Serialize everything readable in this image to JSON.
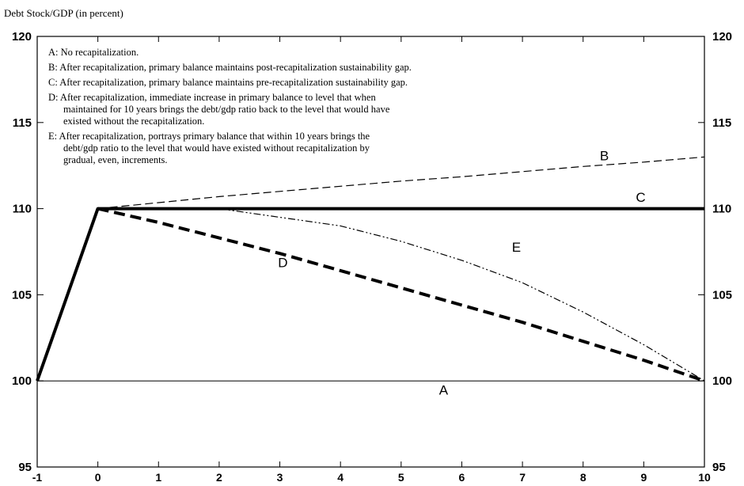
{
  "chart_data": {
    "type": "line",
    "title": "Debt Stock/GDP (in percent)",
    "xlabel": "",
    "ylabel": "",
    "xlim": [
      -1,
      10
    ],
    "ylim": [
      95,
      120
    ],
    "x_ticks": [
      "-1",
      "0",
      "1",
      "2",
      "3",
      "4",
      "5",
      "6",
      "7",
      "8",
      "9",
      "10"
    ],
    "y_ticks": [
      "95",
      "100",
      "105",
      "110",
      "115",
      "120"
    ],
    "grid": false,
    "legend": [
      "A: No recapitalization.",
      "B: After recapitalization, primary balance maintains post-recapitalization sustainability gap.",
      "C: After recapitalization, primary balance maintains pre-recapitalization sustainability gap.",
      "D: After recapitalization, immediate increase in primary balance to level that when",
      "maintained for 10 years brings the debt/gdp ratio back to the level that would have",
      "existed without the recapitalization.",
      "E: After recapitalization, portrays primary balance that within 10 years brings the",
      "debt/gdp ratio to the level that would have existed without recapitalization by",
      "gradual, even, increments."
    ],
    "series": [
      {
        "name": "A",
        "label_pos": [
          5.7,
          99.2
        ],
        "style": "thin",
        "points": [
          [
            -1,
            100
          ],
          [
            10,
            100
          ]
        ]
      },
      {
        "name": "B",
        "label_pos": [
          8.35,
          112.8
        ],
        "style": "dashed",
        "points": [
          [
            0,
            110
          ],
          [
            1,
            110.35
          ],
          [
            2,
            110.7
          ],
          [
            3,
            111.0
          ],
          [
            4,
            111.3
          ],
          [
            5,
            111.6
          ],
          [
            6,
            111.85
          ],
          [
            7,
            112.15
          ],
          [
            8,
            112.45
          ],
          [
            9,
            112.7
          ],
          [
            10,
            113.0
          ]
        ]
      },
      {
        "name": "C",
        "label_pos": [
          8.95,
          110.4
        ],
        "style": "thick",
        "points": [
          [
            -1,
            100
          ],
          [
            0,
            110
          ],
          [
            10,
            110
          ]
        ]
      },
      {
        "name": "D",
        "label_pos": [
          3.05,
          106.6
        ],
        "style": "thickdash",
        "points": [
          [
            0,
            110
          ],
          [
            1,
            109.2
          ],
          [
            2,
            108.3
          ],
          [
            3,
            107.4
          ],
          [
            4,
            106.4
          ],
          [
            5,
            105.4
          ],
          [
            6,
            104.4
          ],
          [
            7,
            103.4
          ],
          [
            8,
            102.3
          ],
          [
            9,
            101.2
          ],
          [
            10,
            100
          ]
        ]
      },
      {
        "name": "E",
        "label_pos": [
          6.9,
          107.5
        ],
        "style": "dashdot",
        "points": [
          [
            2,
            110
          ],
          [
            3,
            109.5
          ],
          [
            4,
            109.0
          ],
          [
            5,
            108.1
          ],
          [
            6,
            107.0
          ],
          [
            7,
            105.7
          ],
          [
            8,
            104.0
          ],
          [
            9,
            102.1
          ],
          [
            10,
            100
          ]
        ]
      }
    ]
  }
}
